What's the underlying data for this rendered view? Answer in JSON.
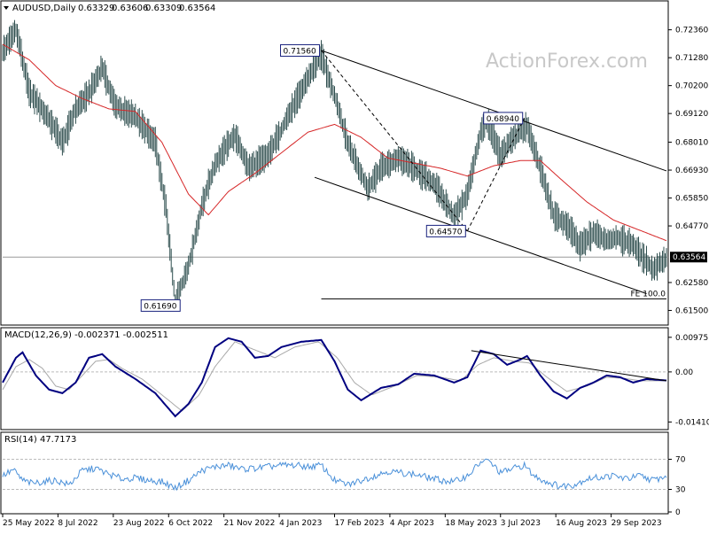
{
  "watermark": "ActionForex.com",
  "colors": {
    "price": "#2f4f4f",
    "ma": "#d62728",
    "macd_line": "#000080",
    "macd_signal": "#a9a9a9",
    "rsi": "#4a90d9",
    "trend": "#000000",
    "hline": "#999999",
    "badge_bg": "#ffffff"
  },
  "chart_data": [
    {
      "type": "line",
      "title": "AUDUSD,Daily",
      "ohlc": {
        "open": "0.63329",
        "high": "0.63606",
        "low": "0.63309",
        "close": "0.63564"
      },
      "ylim": [
        0.6107,
        0.7293
      ],
      "yticks": [
        "0.72360",
        "0.71280",
        "0.70200",
        "0.69120",
        "0.68010",
        "0.66930",
        "0.65850",
        "0.64770",
        "0.63564",
        "0.62580",
        "0.61500"
      ],
      "current_price": 0.63564,
      "current_label": "0.63564",
      "xlim": [
        0,
        500
      ],
      "close_anchors": [
        [
          0,
          0.715
        ],
        [
          10,
          0.724
        ],
        [
          20,
          0.7
        ],
        [
          35,
          0.689
        ],
        [
          45,
          0.68
        ],
        [
          55,
          0.693
        ],
        [
          65,
          0.699
        ],
        [
          75,
          0.709
        ],
        [
          85,
          0.694
        ],
        [
          100,
          0.69
        ],
        [
          115,
          0.68
        ],
        [
          123,
          0.655
        ],
        [
          130,
          0.618
        ],
        [
          140,
          0.632
        ],
        [
          150,
          0.655
        ],
        [
          160,
          0.672
        ],
        [
          175,
          0.683
        ],
        [
          185,
          0.67
        ],
        [
          200,
          0.675
        ],
        [
          215,
          0.69
        ],
        [
          230,
          0.705
        ],
        [
          240,
          0.714
        ],
        [
          250,
          0.698
        ],
        [
          260,
          0.68
        ],
        [
          275,
          0.662
        ],
        [
          285,
          0.67
        ],
        [
          298,
          0.674
        ],
        [
          310,
          0.67
        ],
        [
          325,
          0.664
        ],
        [
          340,
          0.651
        ],
        [
          350,
          0.66
        ],
        [
          360,
          0.684
        ],
        [
          365,
          0.688
        ],
        [
          375,
          0.675
        ],
        [
          385,
          0.682
        ],
        [
          395,
          0.686
        ],
        [
          405,
          0.67
        ],
        [
          415,
          0.652
        ],
        [
          425,
          0.648
        ],
        [
          435,
          0.64
        ],
        [
          445,
          0.645
        ],
        [
          455,
          0.642
        ],
        [
          465,
          0.643
        ],
        [
          475,
          0.64
        ],
        [
          490,
          0.631
        ],
        [
          500,
          0.635
        ]
      ],
      "ma_anchors": [
        [
          0,
          0.718
        ],
        [
          20,
          0.712
        ],
        [
          40,
          0.702
        ],
        [
          60,
          0.697
        ],
        [
          80,
          0.693
        ],
        [
          100,
          0.692
        ],
        [
          120,
          0.68
        ],
        [
          140,
          0.66
        ],
        [
          155,
          0.652
        ],
        [
          170,
          0.661
        ],
        [
          190,
          0.668
        ],
        [
          210,
          0.676
        ],
        [
          230,
          0.684
        ],
        [
          250,
          0.687
        ],
        [
          270,
          0.682
        ],
        [
          290,
          0.674
        ],
        [
          310,
          0.672
        ],
        [
          330,
          0.67
        ],
        [
          350,
          0.667
        ],
        [
          370,
          0.671
        ],
        [
          390,
          0.673
        ],
        [
          405,
          0.673
        ],
        [
          420,
          0.666
        ],
        [
          440,
          0.657
        ],
        [
          460,
          0.65
        ],
        [
          480,
          0.646
        ],
        [
          500,
          0.642
        ]
      ],
      "annotations": [
        {
          "x": 240,
          "y": 0.7156,
          "text": "0.71560",
          "side": "left"
        },
        {
          "x": 393,
          "y": 0.6894,
          "text": "0.68940",
          "side": "left"
        },
        {
          "x": 350,
          "y": 0.6457,
          "text": "0.64570",
          "side": "left"
        },
        {
          "x": 135,
          "y": 0.6169,
          "text": "0.61690",
          "side": "left"
        }
      ],
      "projection_line": {
        "x1": 240,
        "y1": 0.6195,
        "x2": 500,
        "y2": 0.6195,
        "label": "FE 100.0"
      },
      "trendlines": [
        {
          "x1": 240,
          "y1": 0.7156,
          "x2": 500,
          "y2": 0.669,
          "style": "solid"
        },
        {
          "x1": 235,
          "y1": 0.6665,
          "x2": 485,
          "y2": 0.6215,
          "style": "solid"
        },
        {
          "x1": 240,
          "y1": 0.7156,
          "x2": 350,
          "y2": 0.6457,
          "style": "dashed"
        },
        {
          "x1": 350,
          "y1": 0.6457,
          "x2": 393,
          "y2": 0.6894,
          "style": "dashed"
        }
      ]
    },
    {
      "type": "line",
      "title": "MACD(12,26,9) -0.002371 -0.002511",
      "ylim": [
        -0.0155,
        0.0112
      ],
      "yticks": [
        "0.009751",
        "0.00",
        "-0.014107"
      ],
      "zero_label": "0.00",
      "xlim": [
        0,
        500
      ],
      "series": [
        {
          "key": "macd",
          "points": [
            [
              0,
              -0.003
            ],
            [
              10,
              0.004
            ],
            [
              15,
              0.0055
            ],
            [
              25,
              -0.001
            ],
            [
              35,
              -0.005
            ],
            [
              45,
              -0.006
            ],
            [
              55,
              -0.003
            ],
            [
              65,
              0.004
            ],
            [
              75,
              0.005
            ],
            [
              85,
              0.0015
            ],
            [
              100,
              -0.002
            ],
            [
              115,
              -0.006
            ],
            [
              130,
              -0.0125
            ],
            [
              140,
              -0.009
            ],
            [
              150,
              -0.003
            ],
            [
              160,
              0.007
            ],
            [
              170,
              0.0095
            ],
            [
              180,
              0.0085
            ],
            [
              190,
              0.004
            ],
            [
              200,
              0.0045
            ],
            [
              210,
              0.007
            ],
            [
              225,
              0.0085
            ],
            [
              240,
              0.009
            ],
            [
              250,
              0.003
            ],
            [
              260,
              -0.005
            ],
            [
              270,
              -0.008
            ],
            [
              285,
              -0.0045
            ],
            [
              298,
              -0.0035
            ],
            [
              310,
              -0.0005
            ],
            [
              325,
              -0.001
            ],
            [
              340,
              -0.003
            ],
            [
              350,
              -0.0015
            ],
            [
              360,
              0.006
            ],
            [
              370,
              0.005
            ],
            [
              380,
              0.002
            ],
            [
              390,
              0.0035
            ],
            [
              395,
              0.0045
            ],
            [
              405,
              -0.001
            ],
            [
              415,
              -0.0055
            ],
            [
              425,
              -0.0075
            ],
            [
              435,
              -0.0045
            ],
            [
              445,
              -0.003
            ],
            [
              455,
              -0.001
            ],
            [
              465,
              -0.0015
            ],
            [
              475,
              -0.003
            ],
            [
              485,
              -0.002
            ],
            [
              500,
              -0.0024
            ]
          ]
        },
        {
          "key": "signal",
          "points": [
            [
              0,
              -0.005
            ],
            [
              10,
              0.0015
            ],
            [
              20,
              0.0035
            ],
            [
              30,
              0.001
            ],
            [
              40,
              -0.004
            ],
            [
              50,
              -0.005
            ],
            [
              60,
              -0.001
            ],
            [
              70,
              0.003
            ],
            [
              80,
              0.0035
            ],
            [
              90,
              0.001
            ],
            [
              105,
              -0.002
            ],
            [
              120,
              -0.0065
            ],
            [
              135,
              -0.011
            ],
            [
              148,
              -0.0065
            ],
            [
              160,
              0.0015
            ],
            [
              175,
              0.0085
            ],
            [
              188,
              0.0065
            ],
            [
              205,
              0.004
            ],
            [
              220,
              0.007
            ],
            [
              238,
              0.0085
            ],
            [
              252,
              0.004
            ],
            [
              265,
              -0.003
            ],
            [
              278,
              -0.0065
            ],
            [
              295,
              -0.004
            ],
            [
              312,
              -0.001
            ],
            [
              330,
              -0.0015
            ],
            [
              345,
              -0.0025
            ],
            [
              358,
              0.002
            ],
            [
              370,
              0.004
            ],
            [
              385,
              0.003
            ],
            [
              397,
              0.0025
            ],
            [
              410,
              -0.0015
            ],
            [
              425,
              -0.0055
            ],
            [
              440,
              -0.004
            ],
            [
              455,
              -0.0015
            ],
            [
              468,
              -0.0018
            ],
            [
              480,
              -0.0025
            ],
            [
              500,
              -0.0025
            ]
          ]
        }
      ],
      "trendline": {
        "x1": 353,
        "y1": 0.006,
        "x2": 500,
        "y2": -0.0025
      }
    },
    {
      "type": "line",
      "title": "RSI(14) 47.7173",
      "ylim": [
        0,
        100
      ],
      "yticks": [
        "70",
        "30",
        "0"
      ],
      "levels": [
        70,
        30
      ],
      "xlim": [
        0,
        500
      ],
      "points": [
        [
          0,
          48
        ],
        [
          8,
          56
        ],
        [
          15,
          42
        ],
        [
          22,
          38
        ],
        [
          30,
          40
        ],
        [
          40,
          42
        ],
        [
          50,
          36
        ],
        [
          60,
          55
        ],
        [
          70,
          58
        ],
        [
          80,
          50
        ],
        [
          90,
          44
        ],
        [
          100,
          45
        ],
        [
          110,
          42
        ],
        [
          120,
          40
        ],
        [
          130,
          32
        ],
        [
          140,
          42
        ],
        [
          150,
          55
        ],
        [
          160,
          60
        ],
        [
          170,
          62
        ],
        [
          180,
          57
        ],
        [
          190,
          58
        ],
        [
          200,
          60
        ],
        [
          210,
          62
        ],
        [
          220,
          62
        ],
        [
          230,
          60
        ],
        [
          240,
          62
        ],
        [
          250,
          42
        ],
        [
          260,
          36
        ],
        [
          270,
          42
        ],
        [
          280,
          48
        ],
        [
          290,
          54
        ],
        [
          300,
          52
        ],
        [
          310,
          50
        ],
        [
          320,
          46
        ],
        [
          330,
          42
        ],
        [
          340,
          40
        ],
        [
          350,
          48
        ],
        [
          360,
          66
        ],
        [
          366,
          68
        ],
        [
          375,
          52
        ],
        [
          385,
          58
        ],
        [
          393,
          62
        ],
        [
          400,
          48
        ],
        [
          410,
          40
        ],
        [
          420,
          34
        ],
        [
          430,
          36
        ],
        [
          440,
          44
        ],
        [
          450,
          46
        ],
        [
          460,
          48
        ],
        [
          470,
          44
        ],
        [
          480,
          48
        ],
        [
          490,
          42
        ],
        [
          500,
          47.7
        ]
      ]
    }
  ],
  "x_axis": {
    "labels": [
      {
        "x": 0,
        "text": "25 May 2022"
      },
      {
        "x": 30,
        "text": "8 Jul 2022"
      },
      {
        "x": 60,
        "text": "23 Aug 2022"
      },
      {
        "x": 90,
        "text": "6 Oct 2022"
      },
      {
        "x": 120,
        "text": "21 Nov 2022"
      },
      {
        "x": 150,
        "text": "4 Jan 2023"
      },
      {
        "x": 180,
        "text": "17 Feb 2023"
      },
      {
        "x": 210,
        "text": "4 Apr 2023"
      },
      {
        "x": 240,
        "text": "18 May 2023"
      },
      {
        "x": 270,
        "text": "3 Jul 2023"
      },
      {
        "x": 300,
        "text": "16 Aug 2023"
      },
      {
        "x": 330,
        "text": "29 Sep 2023"
      }
    ]
  }
}
